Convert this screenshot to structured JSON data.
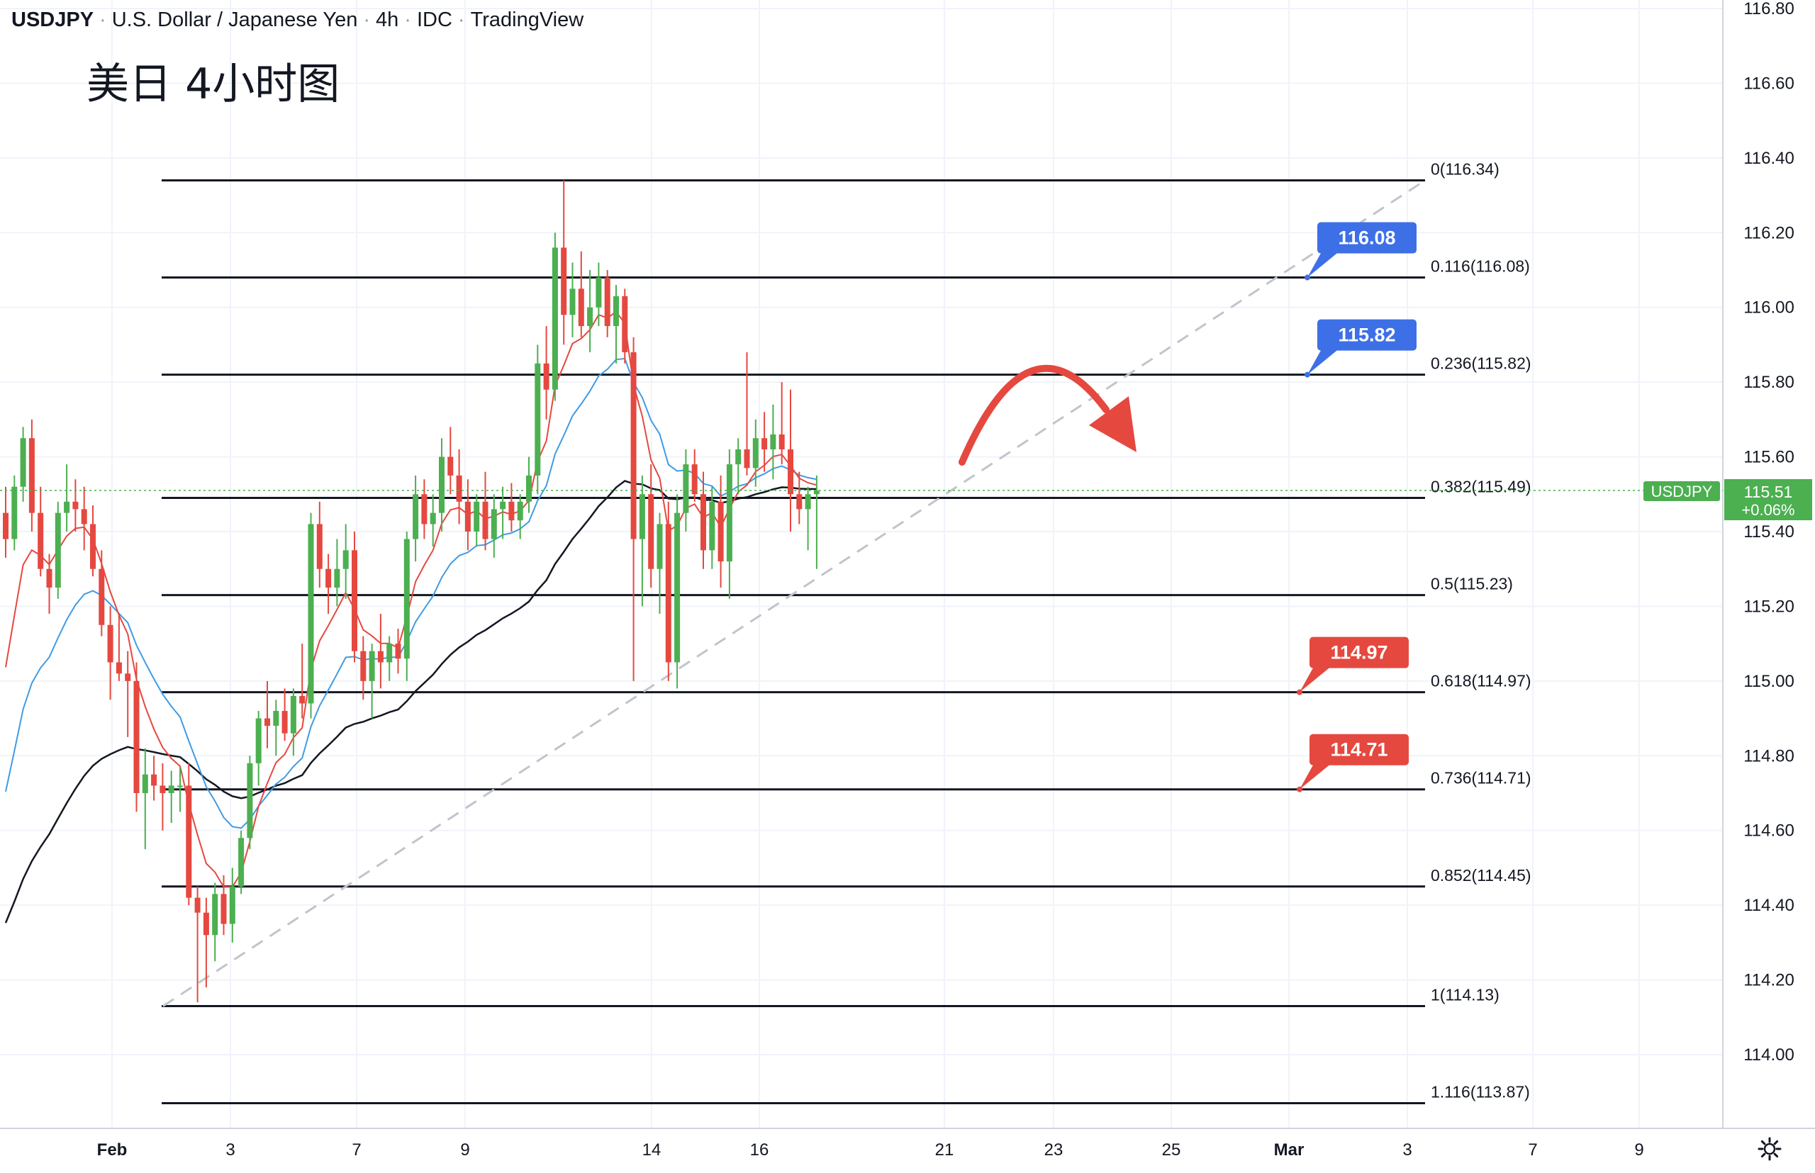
{
  "header": {
    "symbol": "USDJPY",
    "name": "U.S. Dollar / Japanese Yen",
    "timeframe": "4h",
    "source": "IDC",
    "platform": "TradingView"
  },
  "subtitle": "美日 4小时图",
  "settings_icon": "gear-icon",
  "chart_data": {
    "type": "candlestick",
    "y_axis": {
      "range": [
        113.9,
        116.8
      ],
      "ticks": [
        "116.80",
        "116.60",
        "116.40",
        "116.20",
        "116.00",
        "115.80",
        "115.60",
        "115.40",
        "115.20",
        "115.00",
        "114.80",
        "114.60",
        "114.40",
        "114.20",
        "114.00"
      ],
      "side": "right"
    },
    "x_axis": {
      "ticks": [
        "Feb",
        "3",
        "7",
        "9",
        "14",
        "16",
        "21",
        "23",
        "25",
        "Mar",
        "3",
        "7",
        "9"
      ]
    },
    "grid": true,
    "price_label": {
      "symbol": "USDJPY",
      "price": "115.51",
      "change": "+0.06%",
      "value": 115.51,
      "color": "#4caf50"
    },
    "colors": {
      "up": "#4caf50",
      "down": "#e5483f",
      "fast_ma": "#e5483f",
      "mid_ma": "#3f9be5",
      "slow_ma": "#131722",
      "blue_tag": "#3d6fe6",
      "red_tag": "#e5483f"
    },
    "fibonacci": [
      {
        "label": "0(116.34)",
        "value": 116.34
      },
      {
        "label": "0.116(116.08)",
        "value": 116.08
      },
      {
        "label": "0.236(115.82)",
        "value": 115.82
      },
      {
        "label": "0.382(115.49)",
        "value": 115.49
      },
      {
        "label": "0.5(115.23)",
        "value": 115.23
      },
      {
        "label": "0.618(114.97)",
        "value": 114.97
      },
      {
        "label": "0.736(114.71)",
        "value": 114.71
      },
      {
        "label": "0.852(114.45)",
        "value": 114.45
      },
      {
        "label": "1(114.13)",
        "value": 114.13
      },
      {
        "label": "1.116(113.87)",
        "value": 113.87
      }
    ],
    "target_tags": [
      {
        "text": "116.08",
        "value": 116.08,
        "color": "blue"
      },
      {
        "text": "115.82",
        "value": 115.82,
        "color": "blue"
      },
      {
        "text": "114.97",
        "value": 114.97,
        "color": "red"
      },
      {
        "text": "114.71",
        "value": 114.71,
        "color": "red"
      }
    ],
    "trendline": {
      "from": {
        "date": "Feb 1",
        "price": 114.13
      },
      "to": {
        "date": "Feb 26",
        "price": 116.34
      },
      "style": "dashed"
    },
    "forecast_arrow": {
      "direction": "down-right",
      "color": "#e5483f",
      "peak_date": "Feb 23",
      "peak_price": 115.83
    },
    "candles": [
      [
        115.45,
        115.52,
        115.33,
        115.38
      ],
      [
        115.38,
        115.55,
        115.35,
        115.52
      ],
      [
        115.52,
        115.68,
        115.48,
        115.65
      ],
      [
        115.65,
        115.7,
        115.4,
        115.45
      ],
      [
        115.45,
        115.52,
        115.28,
        115.3
      ],
      [
        115.3,
        115.34,
        115.18,
        115.25
      ],
      [
        115.25,
        115.48,
        115.22,
        115.45
      ],
      [
        115.45,
        115.58,
        115.4,
        115.48
      ],
      [
        115.48,
        115.54,
        115.4,
        115.46
      ],
      [
        115.46,
        115.52,
        115.35,
        115.42
      ],
      [
        115.42,
        115.47,
        115.28,
        115.3
      ],
      [
        115.3,
        115.35,
        115.12,
        115.15
      ],
      [
        115.15,
        115.2,
        114.95,
        115.05
      ],
      [
        115.05,
        115.18,
        115.0,
        115.02
      ],
      [
        115.02,
        115.08,
        114.85,
        115.0
      ],
      [
        115.0,
        115.05,
        114.65,
        114.7
      ],
      [
        114.7,
        114.82,
        114.55,
        114.75
      ],
      [
        114.75,
        114.8,
        114.68,
        114.72
      ],
      [
        114.72,
        114.78,
        114.6,
        114.7
      ],
      [
        114.7,
        114.76,
        114.62,
        114.72
      ],
      [
        114.72,
        114.77,
        114.65,
        114.72
      ],
      [
        114.72,
        114.78,
        114.4,
        114.42
      ],
      [
        114.42,
        114.45,
        114.14,
        114.38
      ],
      [
        114.38,
        114.42,
        114.18,
        114.32
      ],
      [
        114.32,
        114.46,
        114.25,
        114.43
      ],
      [
        114.43,
        114.48,
        114.32,
        114.35
      ],
      [
        114.35,
        114.5,
        114.3,
        114.45
      ],
      [
        114.45,
        114.6,
        114.43,
        114.58
      ],
      [
        114.58,
        114.8,
        114.55,
        114.78
      ],
      [
        114.78,
        114.92,
        114.72,
        114.9
      ],
      [
        114.9,
        115.0,
        114.82,
        114.88
      ],
      [
        114.88,
        114.95,
        114.8,
        114.92
      ],
      [
        114.92,
        114.98,
        114.84,
        114.86
      ],
      [
        114.86,
        114.98,
        114.8,
        114.96
      ],
      [
        114.96,
        115.1,
        114.9,
        114.94
      ],
      [
        114.94,
        115.45,
        114.9,
        115.42
      ],
      [
        115.42,
        115.48,
        115.25,
        115.3
      ],
      [
        115.3,
        115.34,
        115.18,
        115.25
      ],
      [
        115.25,
        115.38,
        115.2,
        115.3
      ],
      [
        115.3,
        115.42,
        115.22,
        115.35
      ],
      [
        115.35,
        115.4,
        115.05,
        115.08
      ],
      [
        115.08,
        115.12,
        114.95,
        115.0
      ],
      [
        115.0,
        115.1,
        114.9,
        115.08
      ],
      [
        115.08,
        115.18,
        114.98,
        115.05
      ],
      [
        115.05,
        115.12,
        115.0,
        115.1
      ],
      [
        115.1,
        115.14,
        115.02,
        115.06
      ],
      [
        115.06,
        115.4,
        115.0,
        115.38
      ],
      [
        115.38,
        115.55,
        115.32,
        115.5
      ],
      [
        115.5,
        115.54,
        115.38,
        115.42
      ],
      [
        115.42,
        115.5,
        115.36,
        115.45
      ],
      [
        115.45,
        115.65,
        115.4,
        115.6
      ],
      [
        115.6,
        115.68,
        115.5,
        115.55
      ],
      [
        115.55,
        115.62,
        115.42,
        115.48
      ],
      [
        115.48,
        115.54,
        115.35,
        115.4
      ],
      [
        115.4,
        115.5,
        115.36,
        115.48
      ],
      [
        115.48,
        115.56,
        115.35,
        115.38
      ],
      [
        115.38,
        115.5,
        115.33,
        115.46
      ],
      [
        115.46,
        115.52,
        115.38,
        115.48
      ],
      [
        115.48,
        115.53,
        115.4,
        115.43
      ],
      [
        115.43,
        115.5,
        115.38,
        115.48
      ],
      [
        115.48,
        115.6,
        115.45,
        115.55
      ],
      [
        115.55,
        115.9,
        115.5,
        115.85
      ],
      [
        115.85,
        115.95,
        115.7,
        115.78
      ],
      [
        115.78,
        116.2,
        115.75,
        116.16
      ],
      [
        116.16,
        116.34,
        115.9,
        115.98
      ],
      [
        115.98,
        116.12,
        115.92,
        116.05
      ],
      [
        116.05,
        116.15,
        115.92,
        115.95
      ],
      [
        115.95,
        116.1,
        115.88,
        116.0
      ],
      [
        116.0,
        116.12,
        115.95,
        116.08
      ],
      [
        116.08,
        116.1,
        115.92,
        115.95
      ],
      [
        115.95,
        116.06,
        115.85,
        116.03
      ],
      [
        116.03,
        116.05,
        115.85,
        115.88
      ],
      [
        115.88,
        115.92,
        115.0,
        115.38
      ],
      [
        115.38,
        115.55,
        115.2,
        115.5
      ],
      [
        115.5,
        115.58,
        115.25,
        115.3
      ],
      [
        115.3,
        115.45,
        115.18,
        115.42
      ],
      [
        115.42,
        115.48,
        115.0,
        115.05
      ],
      [
        115.05,
        115.5,
        114.98,
        115.45
      ],
      [
        115.45,
        115.62,
        115.4,
        115.58
      ],
      [
        115.58,
        115.62,
        115.48,
        115.5
      ],
      [
        115.5,
        115.56,
        115.3,
        115.35
      ],
      [
        115.35,
        115.52,
        115.3,
        115.48
      ],
      [
        115.48,
        115.55,
        115.25,
        115.32
      ],
      [
        115.32,
        115.62,
        115.22,
        115.58
      ],
      [
        115.58,
        115.65,
        115.5,
        115.62
      ],
      [
        115.62,
        115.88,
        115.55,
        115.57
      ],
      [
        115.57,
        115.7,
        115.52,
        115.65
      ],
      [
        115.65,
        115.72,
        115.56,
        115.62
      ],
      [
        115.62,
        115.74,
        115.54,
        115.66
      ],
      [
        115.66,
        115.8,
        115.58,
        115.62
      ],
      [
        115.62,
        115.78,
        115.4,
        115.5
      ],
      [
        115.5,
        115.56,
        115.42,
        115.46
      ],
      [
        115.46,
        115.52,
        115.35,
        115.5
      ],
      [
        115.5,
        115.55,
        115.3,
        115.51
      ]
    ]
  }
}
